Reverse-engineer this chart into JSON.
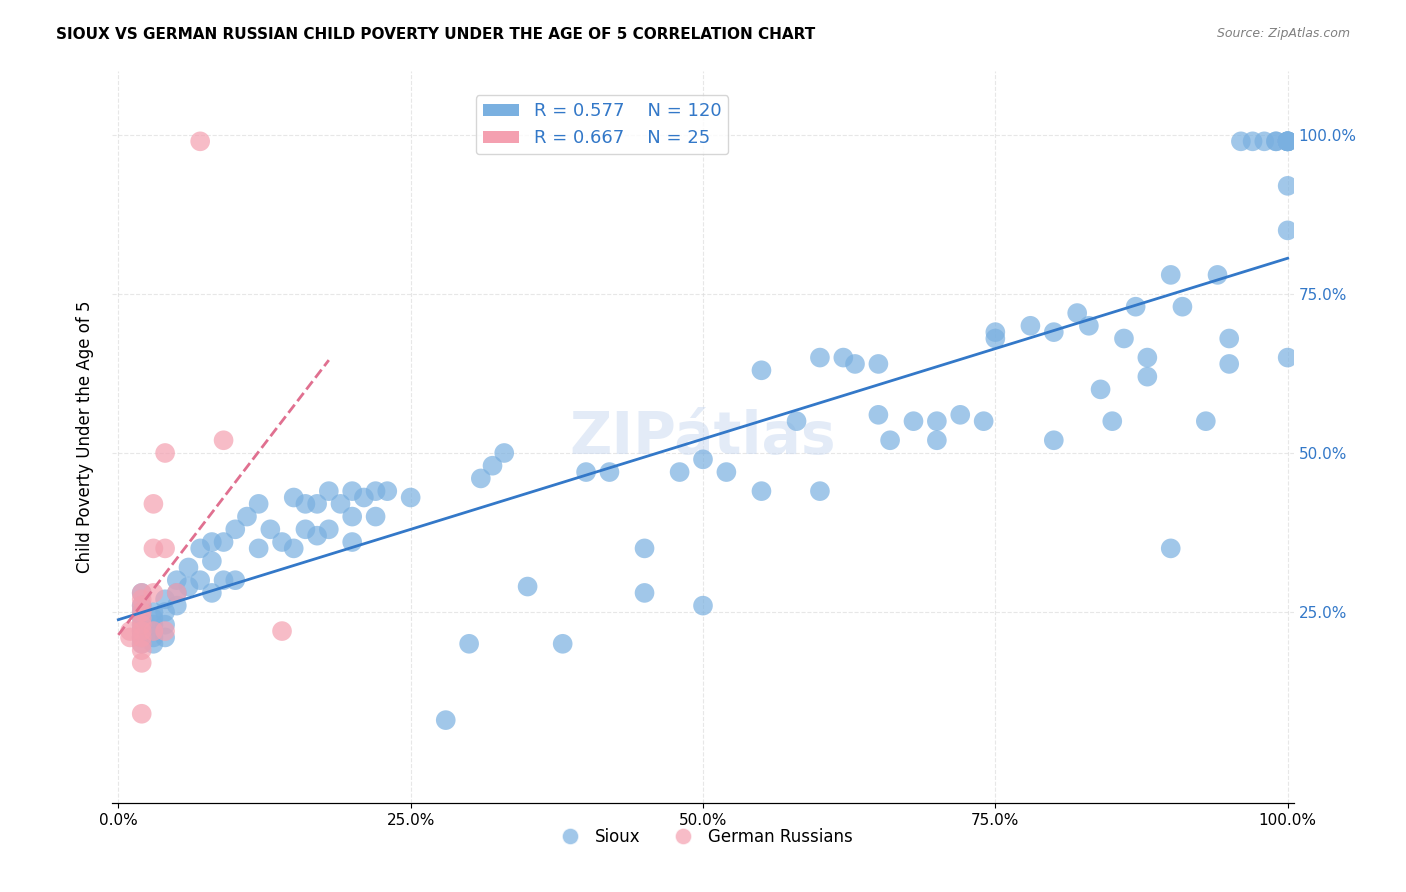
{
  "title": "SIOUX VS GERMAN RUSSIAN CHILD POVERTY UNDER THE AGE OF 5 CORRELATION CHART",
  "source": "Source: ZipAtlas.com",
  "xlabel": "",
  "ylabel": "Child Poverty Under the Age of 5",
  "sioux_R": 0.577,
  "sioux_N": 120,
  "german_R": 0.667,
  "german_N": 25,
  "sioux_color": "#7ab0e0",
  "german_color": "#f4a0b0",
  "sioux_line_color": "#3378c8",
  "german_line_color": "#e07090",
  "background_color": "#ffffff",
  "grid_color": "#dddddd",
  "sioux_scatter_x": [
    0.02,
    0.02,
    0.02,
    0.02,
    0.02,
    0.02,
    0.02,
    0.02,
    0.02,
    0.02,
    0.03,
    0.03,
    0.03,
    0.03,
    0.03,
    0.03,
    0.04,
    0.04,
    0.04,
    0.04,
    0.05,
    0.05,
    0.05,
    0.06,
    0.06,
    0.07,
    0.07,
    0.08,
    0.08,
    0.08,
    0.09,
    0.09,
    0.1,
    0.1,
    0.11,
    0.12,
    0.12,
    0.13,
    0.14,
    0.15,
    0.15,
    0.16,
    0.16,
    0.17,
    0.17,
    0.18,
    0.18,
    0.19,
    0.2,
    0.2,
    0.2,
    0.21,
    0.22,
    0.22,
    0.23,
    0.25,
    0.28,
    0.3,
    0.31,
    0.32,
    0.33,
    0.35,
    0.38,
    0.4,
    0.42,
    0.45,
    0.45,
    0.48,
    0.5,
    0.5,
    0.52,
    0.55,
    0.55,
    0.58,
    0.6,
    0.6,
    0.62,
    0.63,
    0.65,
    0.65,
    0.66,
    0.68,
    0.7,
    0.7,
    0.72,
    0.74,
    0.75,
    0.75,
    0.78,
    0.8,
    0.8,
    0.82,
    0.83,
    0.84,
    0.85,
    0.86,
    0.87,
    0.88,
    0.88,
    0.9,
    0.9,
    0.91,
    0.93,
    0.94,
    0.95,
    0.95,
    0.96,
    0.97,
    0.98,
    0.99,
    0.99,
    1.0,
    1.0,
    1.0,
    1.0,
    1.0,
    1.0,
    1.0,
    1.0,
    1.0
  ],
  "sioux_scatter_y": [
    0.28,
    0.26,
    0.25,
    0.24,
    0.23,
    0.22,
    0.22,
    0.21,
    0.21,
    0.2,
    0.25,
    0.24,
    0.23,
    0.22,
    0.21,
    0.2,
    0.27,
    0.25,
    0.23,
    0.21,
    0.3,
    0.28,
    0.26,
    0.32,
    0.29,
    0.35,
    0.3,
    0.36,
    0.33,
    0.28,
    0.36,
    0.3,
    0.38,
    0.3,
    0.4,
    0.42,
    0.35,
    0.38,
    0.36,
    0.43,
    0.35,
    0.42,
    0.38,
    0.42,
    0.37,
    0.44,
    0.38,
    0.42,
    0.44,
    0.4,
    0.36,
    0.43,
    0.44,
    0.4,
    0.44,
    0.43,
    0.08,
    0.2,
    0.46,
    0.48,
    0.5,
    0.29,
    0.2,
    0.47,
    0.47,
    0.35,
    0.28,
    0.47,
    0.49,
    0.26,
    0.47,
    0.63,
    0.44,
    0.55,
    0.44,
    0.65,
    0.65,
    0.64,
    0.56,
    0.64,
    0.52,
    0.55,
    0.52,
    0.55,
    0.56,
    0.55,
    0.68,
    0.69,
    0.7,
    0.69,
    0.52,
    0.72,
    0.7,
    0.6,
    0.55,
    0.68,
    0.73,
    0.65,
    0.62,
    0.78,
    0.35,
    0.73,
    0.55,
    0.78,
    0.68,
    0.64,
    0.99,
    0.99,
    0.99,
    0.99,
    0.99,
    0.99,
    0.99,
    0.99,
    0.99,
    0.99,
    0.99,
    0.85,
    0.92,
    0.65
  ],
  "german_scatter_x": [
    0.01,
    0.01,
    0.02,
    0.02,
    0.02,
    0.02,
    0.02,
    0.02,
    0.02,
    0.02,
    0.02,
    0.02,
    0.02,
    0.02,
    0.03,
    0.03,
    0.03,
    0.03,
    0.04,
    0.04,
    0.04,
    0.05,
    0.07,
    0.09,
    0.14
  ],
  "german_scatter_y": [
    0.22,
    0.21,
    0.28,
    0.27,
    0.26,
    0.25,
    0.24,
    0.23,
    0.22,
    0.21,
    0.2,
    0.19,
    0.17,
    0.09,
    0.42,
    0.35,
    0.28,
    0.22,
    0.5,
    0.35,
    0.22,
    0.28,
    0.99,
    0.52,
    0.22
  ]
}
